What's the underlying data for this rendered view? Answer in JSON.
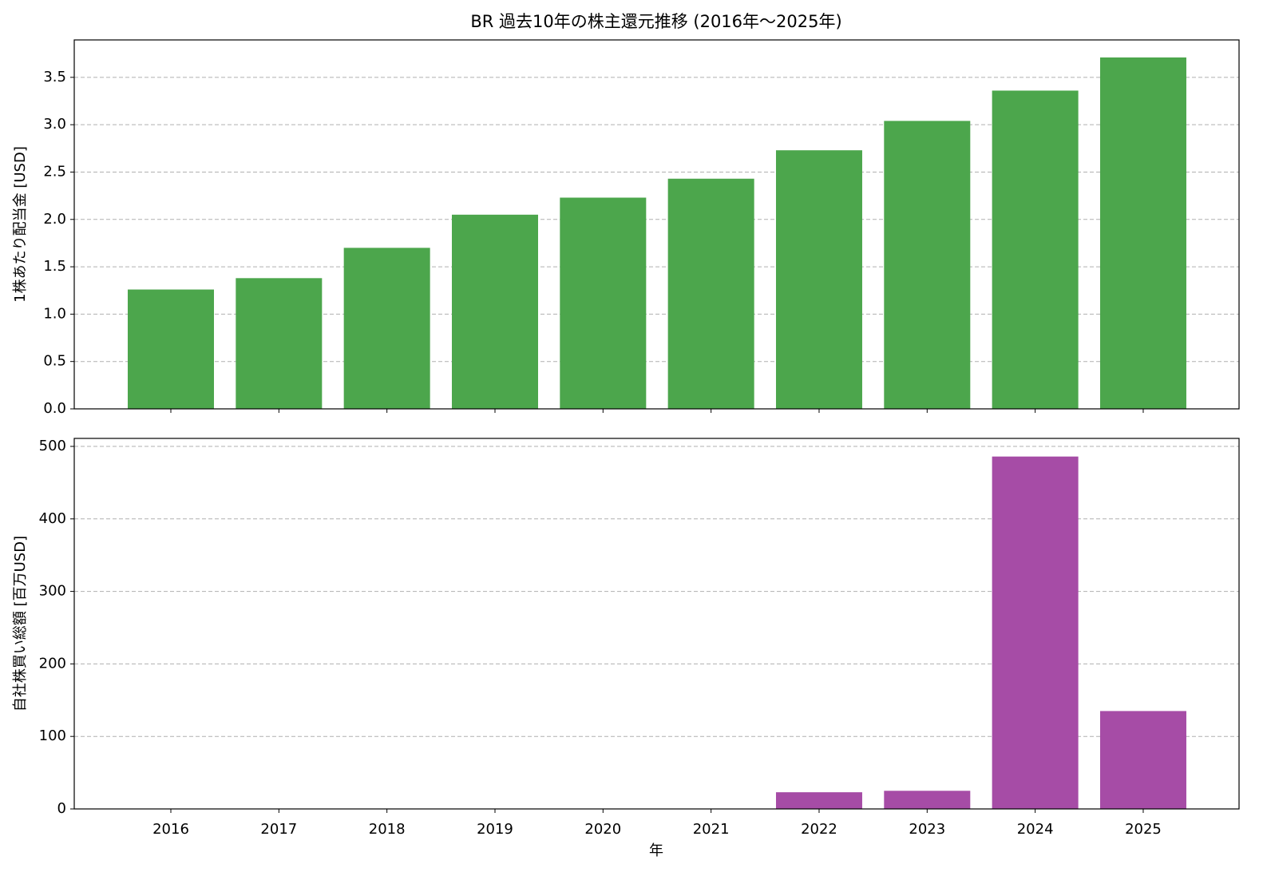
{
  "chart_data": [
    {
      "type": "bar",
      "title": "BR 過去10年の株主還元推移 (2016年～2025年)",
      "y_label": "1株あたり配当金 [USD]",
      "values": [
        1.26,
        1.38,
        1.7,
        2.05,
        2.23,
        2.43,
        2.73,
        3.04,
        3.36,
        3.71
      ],
      "color": "#4ca64c",
      "ylim": [
        0,
        3.895
      ],
      "yticks": [
        {
          "value": 0,
          "label": "0.0"
        },
        0.5,
        {
          "value": 1,
          "label": "1.0"
        },
        1.5,
        {
          "value": 2,
          "label": "2.0"
        },
        2.5,
        {
          "value": 3,
          "label": "3.0"
        },
        3.5
      ],
      "grid": true
    },
    {
      "type": "bar",
      "x_label": "年",
      "y_label": "自社株買い総額 [百万USD]",
      "categories": [
        "2016",
        "2017",
        "2018",
        "2019",
        "2020",
        "2021",
        "2022",
        "2023",
        "2024",
        "2025"
      ],
      "values": [
        0,
        0,
        0,
        0,
        0,
        0,
        23,
        25,
        486,
        135
      ],
      "color": "#a64ca6",
      "ylim": [
        0,
        511
      ],
      "yticks": [
        0,
        100,
        200,
        300,
        400,
        500
      ],
      "grid": true
    }
  ]
}
